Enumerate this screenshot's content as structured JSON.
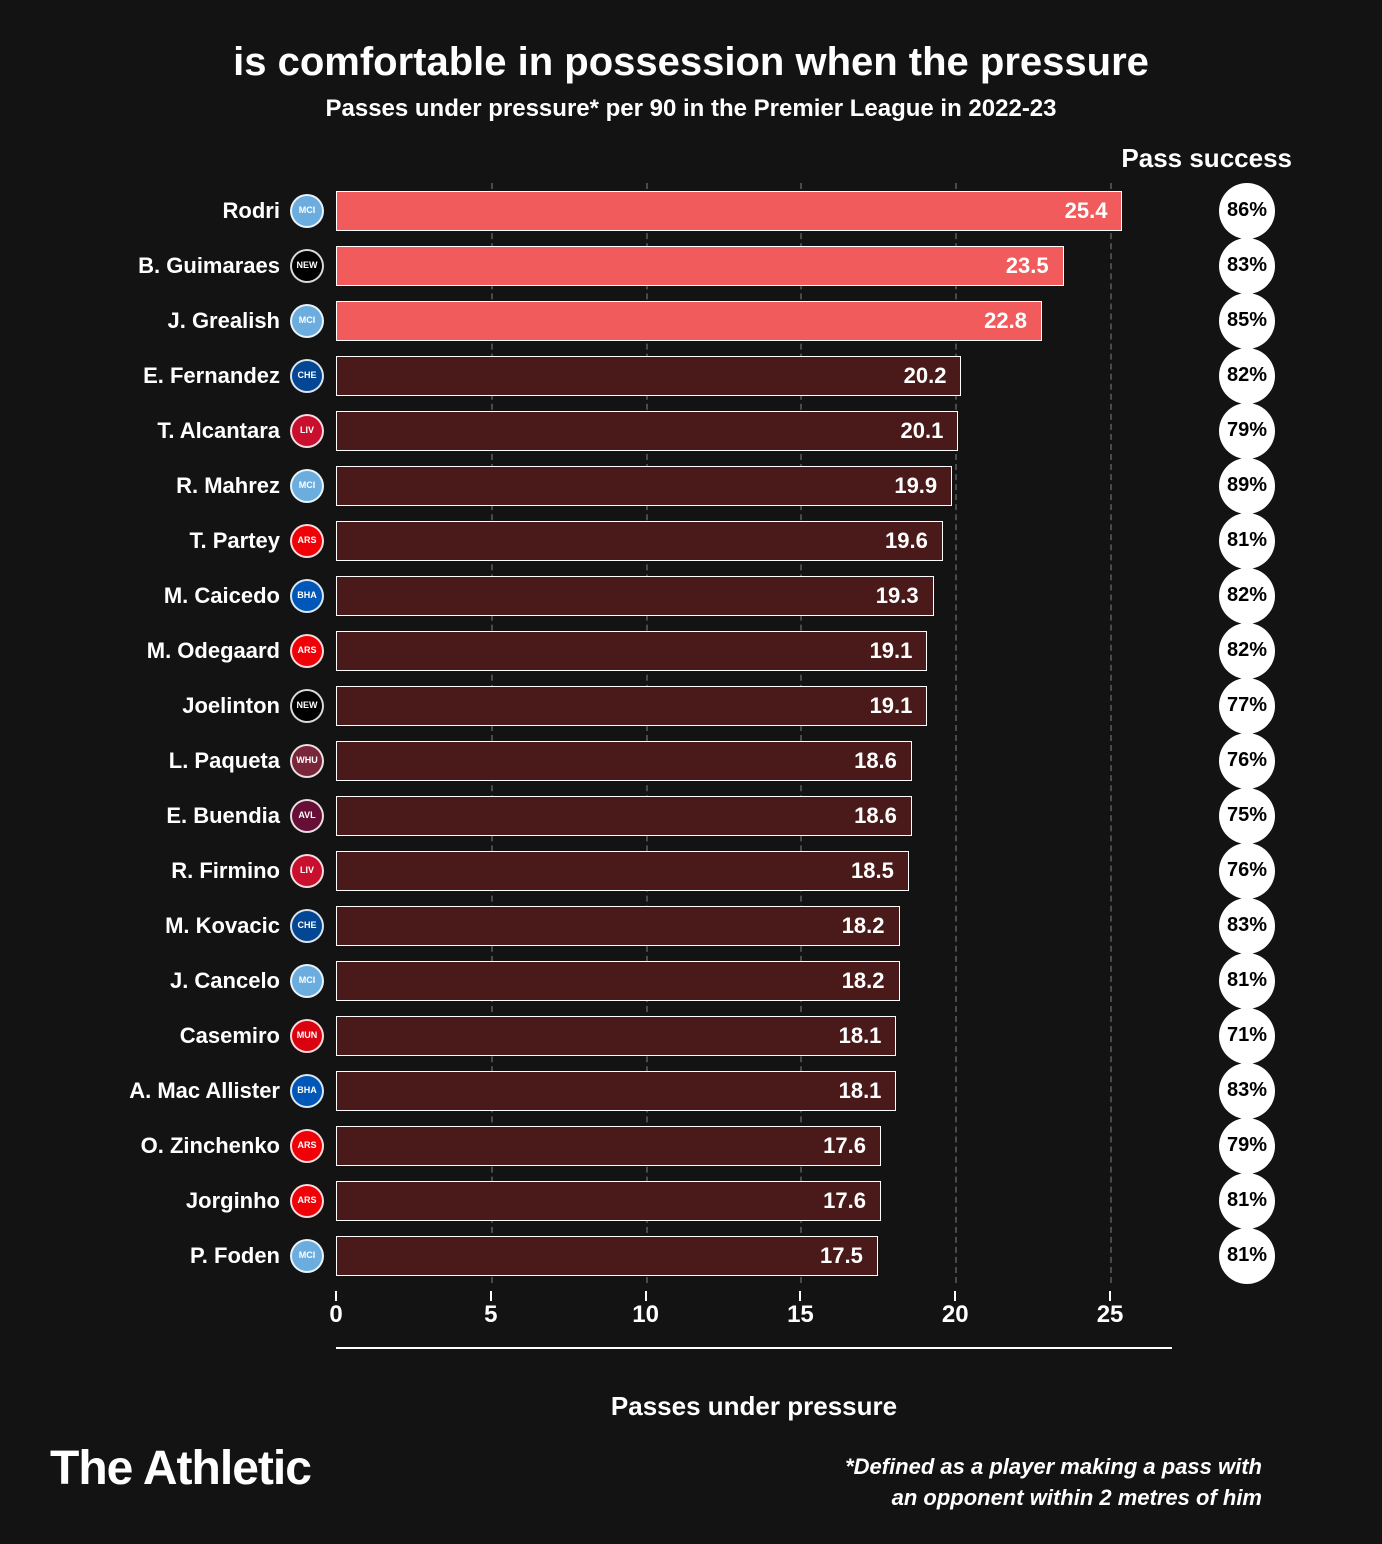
{
  "header": {
    "title": "is comfortable in possession when the pressure",
    "subtitle": "Passes under pressure* per 90 in the Premier League in 2022-23",
    "pass_success_label": "Pass success"
  },
  "chart": {
    "type": "bar",
    "x_label": "Passes under pressure",
    "x_domain_max": 27,
    "x_ticks": [
      0,
      5,
      10,
      15,
      20,
      25
    ],
    "grid_color": "#4a4a4a",
    "bar_border_color": "#ffffff",
    "background_color": "#131313",
    "highlight_color": "#f15b5b",
    "dim_color": "#4a1a1a",
    "players": [
      {
        "name": "Rodri",
        "club": "MCI",
        "club_bg": "#6caddf",
        "value": 25.4,
        "success": "86%",
        "highlighted": true
      },
      {
        "name": "B. Guimaraes",
        "club": "NEW",
        "club_bg": "#000000",
        "value": 23.5,
        "success": "83%",
        "highlighted": true
      },
      {
        "name": "J. Grealish",
        "club": "MCI",
        "club_bg": "#6caddf",
        "value": 22.8,
        "success": "85%",
        "highlighted": true
      },
      {
        "name": "E. Fernandez",
        "club": "CHE",
        "club_bg": "#034694",
        "value": 20.2,
        "success": "82%",
        "highlighted": false
      },
      {
        "name": "T. Alcantara",
        "club": "LIV",
        "club_bg": "#c8102e",
        "value": 20.1,
        "success": "79%",
        "highlighted": false
      },
      {
        "name": "R. Mahrez",
        "club": "MCI",
        "club_bg": "#6caddf",
        "value": 19.9,
        "success": "89%",
        "highlighted": false
      },
      {
        "name": "T. Partey",
        "club": "ARS",
        "club_bg": "#ef0107",
        "value": 19.6,
        "success": "81%",
        "highlighted": false
      },
      {
        "name": "M. Caicedo",
        "club": "BHA",
        "club_bg": "#0057b8",
        "value": 19.3,
        "success": "82%",
        "highlighted": false
      },
      {
        "name": "M. Odegaard",
        "club": "ARS",
        "club_bg": "#ef0107",
        "value": 19.1,
        "success": "82%",
        "highlighted": false
      },
      {
        "name": "Joelinton",
        "club": "NEW",
        "club_bg": "#000000",
        "value": 19.1,
        "success": "77%",
        "highlighted": false
      },
      {
        "name": "L. Paqueta",
        "club": "WHU",
        "club_bg": "#7a263a",
        "value": 18.6,
        "success": "76%",
        "highlighted": false
      },
      {
        "name": "E. Buendia",
        "club": "AVL",
        "club_bg": "#670e36",
        "value": 18.6,
        "success": "75%",
        "highlighted": false
      },
      {
        "name": "R. Firmino",
        "club": "LIV",
        "club_bg": "#c8102e",
        "value": 18.5,
        "success": "76%",
        "highlighted": false
      },
      {
        "name": "M. Kovacic",
        "club": "CHE",
        "club_bg": "#034694",
        "value": 18.2,
        "success": "83%",
        "highlighted": false
      },
      {
        "name": "J. Cancelo",
        "club": "MCI",
        "club_bg": "#6caddf",
        "value": 18.2,
        "success": "81%",
        "highlighted": false
      },
      {
        "name": "Casemiro",
        "club": "MUN",
        "club_bg": "#da020e",
        "value": 18.1,
        "success": "71%",
        "highlighted": false
      },
      {
        "name": "A. Mac Allister",
        "club": "BHA",
        "club_bg": "#0057b8",
        "value": 18.1,
        "success": "83%",
        "highlighted": false
      },
      {
        "name": "O. Zinchenko",
        "club": "ARS",
        "club_bg": "#ef0107",
        "value": 17.6,
        "success": "79%",
        "highlighted": false
      },
      {
        "name": "Jorginho",
        "club": "ARS",
        "club_bg": "#ef0107",
        "value": 17.6,
        "success": "81%",
        "highlighted": false
      },
      {
        "name": "P. Foden",
        "club": "MCI",
        "club_bg": "#6caddf",
        "value": 17.5,
        "success": "81%",
        "highlighted": false
      }
    ]
  },
  "footnote": {
    "line1": "*Defined as a player making a pass with",
    "line2": "an opponent within 2 metres of him"
  },
  "brand": "The Athletic"
}
